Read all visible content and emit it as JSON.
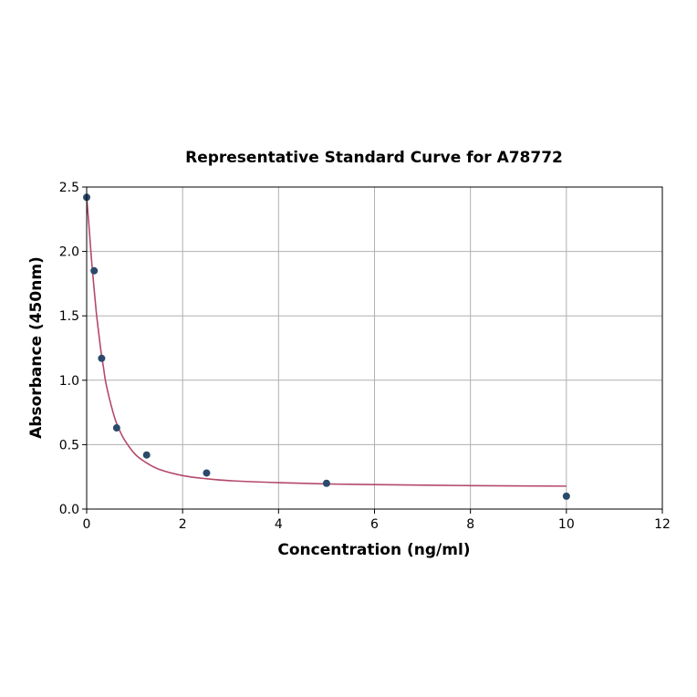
{
  "chart_data": {
    "type": "scatter",
    "title": "Representative Standard Curve for A78772",
    "xlabel": "Concentration (ng/ml)",
    "ylabel": "Absorbance (450nm)",
    "xlim": [
      0,
      12
    ],
    "ylim": [
      0,
      2.5
    ],
    "xticks": [
      0,
      2,
      4,
      6,
      8,
      10,
      12
    ],
    "xtick_labels": [
      "0",
      "2",
      "4",
      "6",
      "8",
      "10",
      "12"
    ],
    "yticks": [
      0.0,
      0.5,
      1.0,
      1.5,
      2.0,
      2.5
    ],
    "ytick_labels": [
      "0.0",
      "0.5",
      "1.0",
      "1.5",
      "2.0",
      "2.5"
    ],
    "grid": true,
    "series": [
      {
        "kind": "points",
        "color": "#2b4a6b",
        "x": [
          0,
          0.156,
          0.312,
          0.625,
          1.25,
          2.5,
          5,
          10
        ],
        "y": [
          2.42,
          1.85,
          1.17,
          0.63,
          0.42,
          0.28,
          0.2,
          0.1
        ]
      },
      {
        "kind": "fit-curve",
        "color": "#b5496a",
        "x": [
          0,
          0.05,
          0.1,
          0.15,
          0.2,
          0.25,
          0.3,
          0.35,
          0.4,
          0.5,
          0.6,
          0.7,
          0.8,
          1.0,
          1.2,
          1.5,
          2.0,
          2.5,
          3.0,
          4.0,
          5.0,
          6.0,
          8.0,
          10.0
        ],
        "y": [
          2.42,
          2.19,
          1.94,
          1.73,
          1.53,
          1.37,
          1.22,
          1.1,
          0.98,
          0.82,
          0.69,
          0.6,
          0.53,
          0.43,
          0.37,
          0.31,
          0.26,
          0.235,
          0.22,
          0.205,
          0.195,
          0.19,
          0.182,
          0.178
        ]
      }
    ]
  }
}
